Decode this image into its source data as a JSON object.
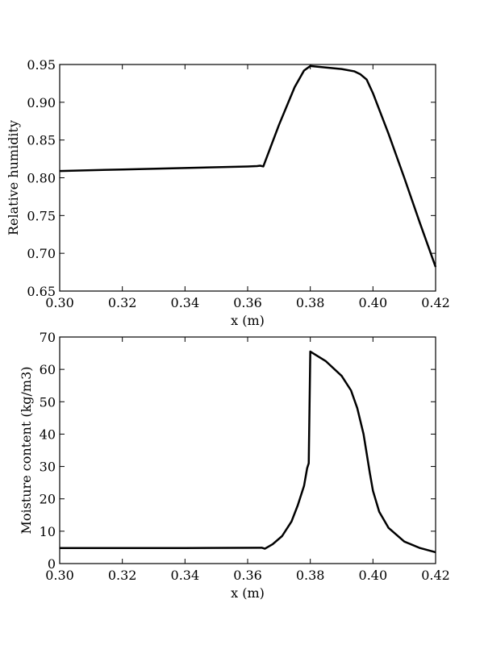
{
  "chart_data": [
    {
      "type": "line",
      "xlabel": "x (m)",
      "ylabel": "Relative humidity",
      "xlim": [
        0.3,
        0.42
      ],
      "ylim": [
        0.65,
        0.95
      ],
      "xticks": [
        "0.30",
        "0.32",
        "0.34",
        "0.36",
        "0.38",
        "0.40",
        "0.42"
      ],
      "yticks": [
        "0.65",
        "0.70",
        "0.75",
        "0.80",
        "0.85",
        "0.90",
        "0.95"
      ],
      "grid": false,
      "line_color": "#000000",
      "series": [
        {
          "x": [
            0.3,
            0.32,
            0.34,
            0.36,
            0.363,
            0.364,
            0.365,
            0.37,
            0.375,
            0.378,
            0.38,
            0.385,
            0.39,
            0.394,
            0.396,
            0.398,
            0.4,
            0.405,
            0.41,
            0.415,
            0.42
          ],
          "y": [
            0.809,
            0.811,
            0.813,
            0.815,
            0.8155,
            0.816,
            0.815,
            0.87,
            0.92,
            0.942,
            0.948,
            0.946,
            0.944,
            0.941,
            0.937,
            0.93,
            0.912,
            0.858,
            0.8,
            0.74,
            0.682
          ]
        }
      ]
    },
    {
      "type": "line",
      "xlabel": "x (m)",
      "ylabel": "Moisture content (kg/m3)",
      "xlim": [
        0.3,
        0.42
      ],
      "ylim": [
        0,
        70
      ],
      "xticks": [
        "0.30",
        "0.32",
        "0.34",
        "0.36",
        "0.38",
        "0.40",
        "0.42"
      ],
      "yticks": [
        "0",
        "10",
        "20",
        "30",
        "40",
        "50",
        "60",
        "70"
      ],
      "grid": false,
      "line_color": "#000000",
      "series": [
        {
          "x": [
            0.3,
            0.34,
            0.3645,
            0.3655,
            0.368,
            0.371,
            0.374,
            0.376,
            0.378,
            0.379,
            0.3795,
            0.38,
            0.385,
            0.39,
            0.393,
            0.395,
            0.397,
            0.398,
            0.399,
            0.4,
            0.402,
            0.405,
            0.41,
            0.415,
            0.42
          ],
          "y": [
            4.8,
            4.8,
            4.9,
            4.6,
            6.0,
            8.5,
            13.0,
            18.0,
            24.0,
            29.5,
            31.0,
            65.5,
            62.5,
            58.0,
            53.5,
            48.0,
            40.0,
            34.0,
            28.0,
            22.5,
            16.0,
            11.0,
            6.8,
            4.8,
            3.5
          ]
        }
      ]
    }
  ]
}
